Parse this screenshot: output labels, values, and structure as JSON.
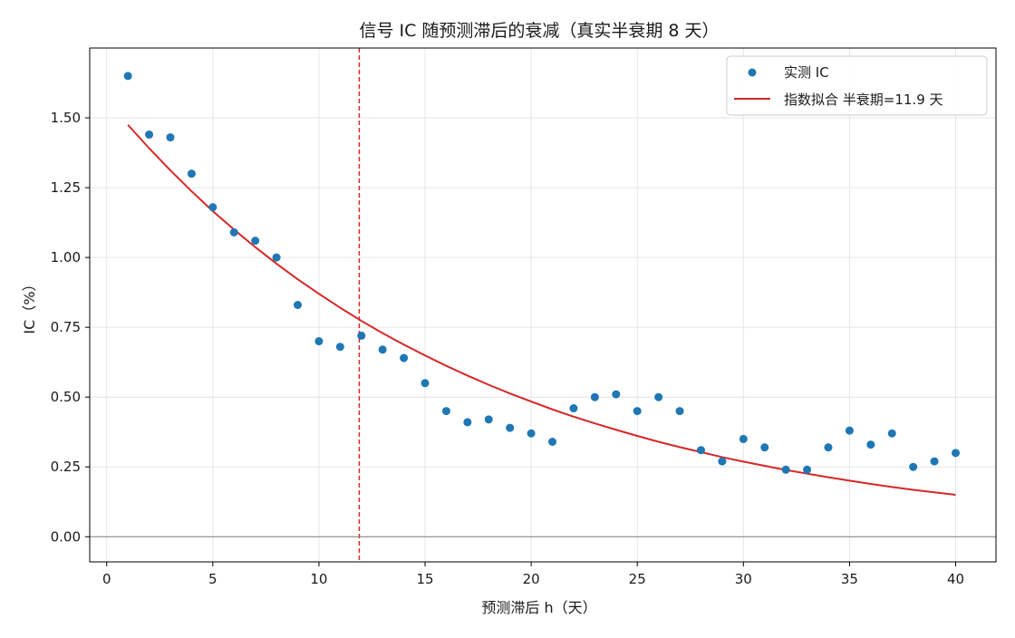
{
  "chart_data": {
    "type": "scatter",
    "title": "信号 IC 随预测滞后的衰减（真实半衰期 8 天）",
    "xlabel": "预测滞后 h（天）",
    "ylabel": "IC（%）",
    "xlim": [
      -0.8,
      41.9
    ],
    "ylim": [
      -0.09,
      1.75
    ],
    "xticks": [
      0,
      5,
      10,
      15,
      20,
      25,
      30,
      35,
      40
    ],
    "yticks": [
      0.0,
      0.25,
      0.5,
      0.75,
      1.0,
      1.25,
      1.5
    ],
    "xtick_labels": [
      "0",
      "5",
      "10",
      "15",
      "20",
      "25",
      "30",
      "35",
      "40"
    ],
    "ytick_labels": [
      "0.00",
      "0.25",
      "0.50",
      "0.75",
      "1.00",
      "1.25",
      "1.50"
    ],
    "grid": true,
    "legend_position": "top-right",
    "series": [
      {
        "name": "实测 IC",
        "kind": "scatter",
        "color": "#1f77b4",
        "x": [
          1,
          2,
          3,
          4,
          5,
          6,
          7,
          8,
          9,
          10,
          11,
          12,
          13,
          14,
          15,
          16,
          17,
          18,
          19,
          20,
          21,
          22,
          23,
          24,
          25,
          26,
          27,
          28,
          29,
          30,
          31,
          32,
          33,
          34,
          35,
          36,
          37,
          38,
          39,
          40
        ],
        "y": [
          1.65,
          1.44,
          1.43,
          1.3,
          1.18,
          1.09,
          1.06,
          1.0,
          0.83,
          0.7,
          0.68,
          0.72,
          0.67,
          0.64,
          0.55,
          0.45,
          0.41,
          0.42,
          0.39,
          0.37,
          0.34,
          0.46,
          0.5,
          0.51,
          0.45,
          0.5,
          0.45,
          0.31,
          0.27,
          0.35,
          0.32,
          0.24,
          0.24,
          0.32,
          0.38,
          0.33,
          0.37,
          0.25,
          0.27,
          0.3
        ]
      },
      {
        "name": "指数拟合  半衰期=11.9 天",
        "kind": "line",
        "color": "#d62728",
        "x": [
          1,
          2,
          3,
          4,
          5,
          6,
          7,
          8,
          9,
          10,
          11,
          12,
          13,
          14,
          15,
          16,
          17,
          18,
          19,
          20,
          21,
          22,
          23,
          24,
          25,
          26,
          27,
          28,
          29,
          30,
          31,
          32,
          33,
          34,
          35,
          36,
          37,
          38,
          39,
          40
        ],
        "y": [
          1.475,
          1.391,
          1.312,
          1.237,
          1.166,
          1.1,
          1.037,
          0.978,
          0.922,
          0.87,
          0.82,
          0.773,
          0.729,
          0.688,
          0.649,
          0.612,
          0.577,
          0.544,
          0.513,
          0.484,
          0.456,
          0.43,
          0.406,
          0.383,
          0.361,
          0.34,
          0.321,
          0.303,
          0.285,
          0.269,
          0.254,
          0.239,
          0.226,
          0.213,
          0.201,
          0.189,
          0.178,
          0.168,
          0.159,
          0.15
        ]
      }
    ],
    "reference_lines": [
      {
        "orientation": "vertical",
        "value": 11.9,
        "color": "#d62728",
        "style": "dashed"
      },
      {
        "orientation": "horizontal",
        "value": 0,
        "color": "#808080",
        "style": "solid"
      }
    ]
  }
}
